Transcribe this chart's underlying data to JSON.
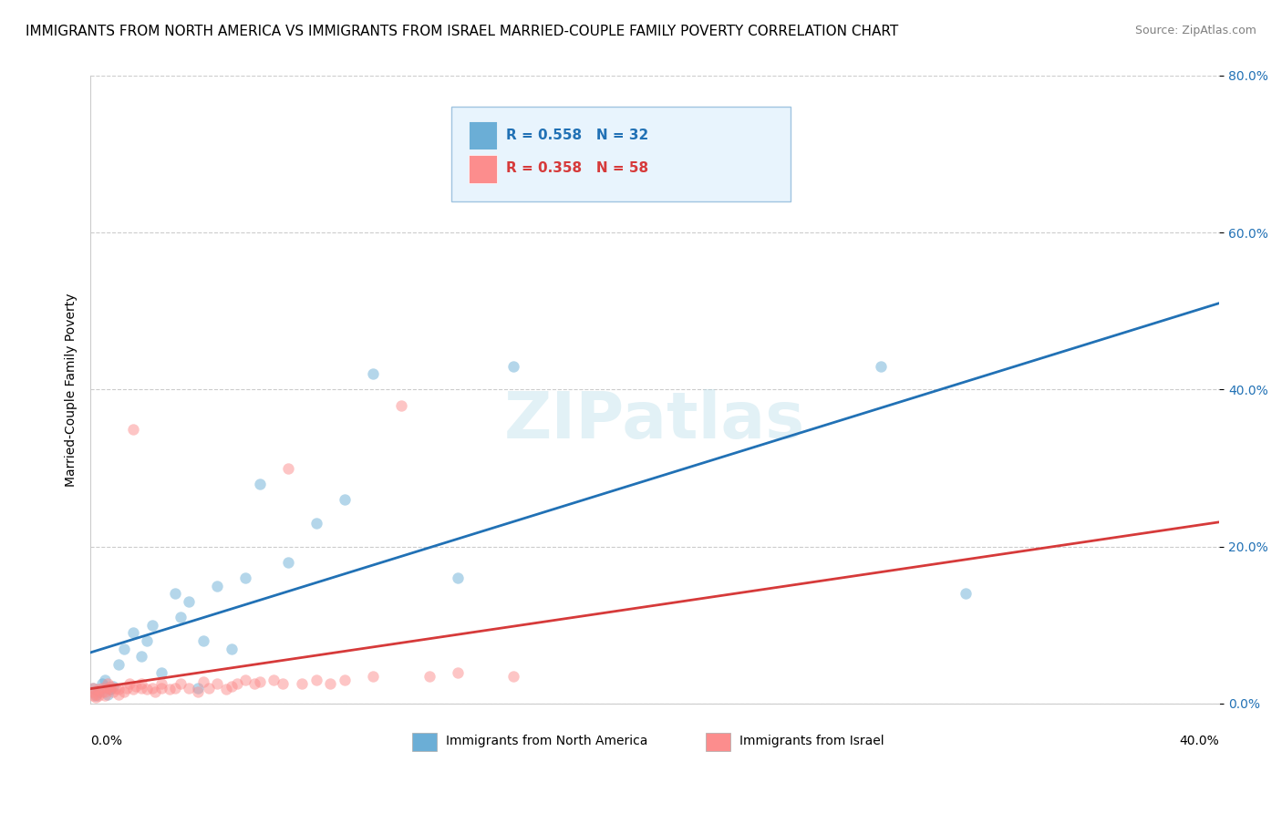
{
  "title": "IMMIGRANTS FROM NORTH AMERICA VS IMMIGRANTS FROM ISRAEL MARRIED-COUPLE FAMILY POVERTY CORRELATION CHART",
  "source": "Source: ZipAtlas.com",
  "ylabel": "Married-Couple Family Poverty",
  "xlim": [
    0,
    0.4
  ],
  "ylim": [
    0,
    0.8
  ],
  "ytick_labels": [
    "0.0%",
    "20.0%",
    "40.0%",
    "60.0%",
    "80.0%"
  ],
  "ytick_values": [
    0.0,
    0.2,
    0.4,
    0.6,
    0.8
  ],
  "watermark": "ZIPatlas",
  "series": [
    {
      "name": "Immigrants from North America",
      "color": "#6baed6",
      "R": 0.558,
      "N": 32,
      "x": [
        0.001,
        0.002,
        0.003,
        0.004,
        0.005,
        0.006,
        0.007,
        0.008,
        0.01,
        0.012,
        0.015,
        0.018,
        0.02,
        0.022,
        0.025,
        0.03,
        0.032,
        0.035,
        0.038,
        0.04,
        0.045,
        0.05,
        0.055,
        0.06,
        0.07,
        0.08,
        0.09,
        0.1,
        0.13,
        0.15,
        0.28,
        0.31
      ],
      "y": [
        0.02,
        0.01,
        0.015,
        0.025,
        0.03,
        0.012,
        0.018,
        0.022,
        0.05,
        0.07,
        0.09,
        0.06,
        0.08,
        0.1,
        0.04,
        0.14,
        0.11,
        0.13,
        0.02,
        0.08,
        0.15,
        0.07,
        0.16,
        0.28,
        0.18,
        0.23,
        0.26,
        0.42,
        0.16,
        0.43,
        0.43,
        0.14
      ],
      "line_color": "#2171b5"
    },
    {
      "name": "Immigrants from Israel",
      "color": "#fc8d8d",
      "R": 0.358,
      "N": 58,
      "x": [
        0.001,
        0.001,
        0.001,
        0.002,
        0.002,
        0.003,
        0.003,
        0.004,
        0.004,
        0.005,
        0.005,
        0.006,
        0.006,
        0.007,
        0.007,
        0.008,
        0.009,
        0.01,
        0.01,
        0.012,
        0.013,
        0.014,
        0.015,
        0.015,
        0.016,
        0.018,
        0.018,
        0.02,
        0.022,
        0.023,
        0.025,
        0.025,
        0.028,
        0.03,
        0.032,
        0.035,
        0.038,
        0.04,
        0.042,
        0.045,
        0.048,
        0.05,
        0.052,
        0.055,
        0.058,
        0.06,
        0.065,
        0.068,
        0.07,
        0.075,
        0.08,
        0.085,
        0.09,
        0.1,
        0.11,
        0.12,
        0.13,
        0.15
      ],
      "y": [
        0.01,
        0.015,
        0.02,
        0.008,
        0.012,
        0.01,
        0.018,
        0.015,
        0.02,
        0.01,
        0.015,
        0.02,
        0.025,
        0.018,
        0.022,
        0.015,
        0.02,
        0.012,
        0.018,
        0.015,
        0.02,
        0.025,
        0.018,
        0.35,
        0.022,
        0.02,
        0.025,
        0.018,
        0.02,
        0.015,
        0.02,
        0.025,
        0.018,
        0.02,
        0.025,
        0.02,
        0.015,
        0.028,
        0.02,
        0.025,
        0.018,
        0.022,
        0.025,
        0.03,
        0.025,
        0.028,
        0.03,
        0.025,
        0.3,
        0.025,
        0.03,
        0.025,
        0.03,
        0.035,
        0.38,
        0.035,
        0.04,
        0.035
      ],
      "line_color": "#d63a3a"
    }
  ],
  "legend_box_color": "#e8f4fd",
  "legend_border_color": "#a0c4e0",
  "blue_label_color": "#2171b5",
  "pink_label_color": "#d63a3a",
  "background_color": "#ffffff",
  "grid_color": "#cccccc",
  "title_fontsize": 11,
  "axis_label_fontsize": 10,
  "tick_fontsize": 10,
  "scatter_alpha": 0.5,
  "scatter_size": 80
}
